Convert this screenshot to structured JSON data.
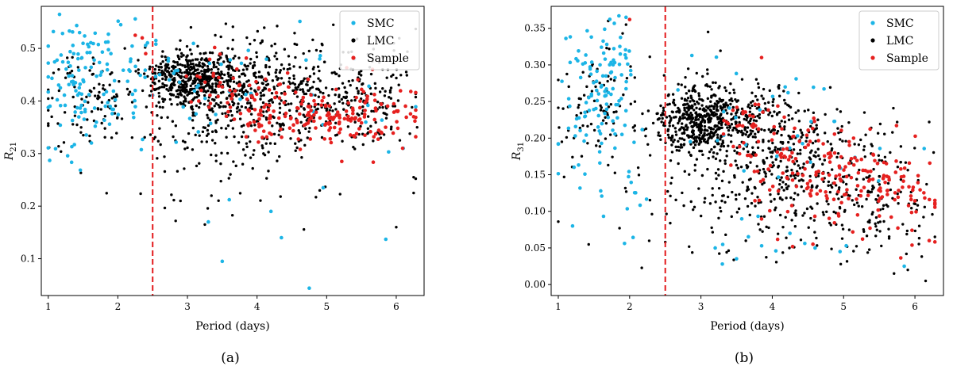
{
  "chart_data": [
    {
      "type": "scatter",
      "panel_label": "(a)",
      "xlabel": "Period (days)",
      "ylabel_main": "R",
      "ylabel_sub": "21",
      "xlim": [
        0.9,
        6.4
      ],
      "ylim": [
        0.03,
        0.58
      ],
      "xticks": [
        1,
        2,
        3,
        4,
        5,
        6
      ],
      "yticks": [
        0.1,
        0.2,
        0.3,
        0.4,
        0.5
      ],
      "vline": 2.5,
      "legend_position": "top-right",
      "series": [
        {
          "name": "SMC",
          "color": "#1cb5e6",
          "count": 180,
          "seed": 11,
          "centers": [
            [
              1.02,
              0.287
            ],
            [
              1.5,
              0.44
            ],
            [
              1.9,
              0.49
            ],
            [
              2.25,
              0.556
            ],
            [
              1.45,
              0.53
            ],
            [
              2.6,
              0.45
            ],
            [
              3.2,
              0.42
            ],
            [
              3.3,
              0.17
            ],
            [
              3.5,
              0.095
            ],
            [
              4.75,
              0.044
            ],
            [
              4.35,
              0.14
            ],
            [
              4.2,
              0.19
            ],
            [
              4.95,
              0.235
            ],
            [
              5.85,
              0.137
            ],
            [
              6.1,
              0.31
            ],
            [
              5.4,
              0.48
            ],
            [
              4.9,
              0.48
            ]
          ],
          "clusters": [
            [
              1.55,
              0.44,
              0.3,
              0.055,
              0.55
            ],
            [
              2.5,
              0.43,
              0.35,
              0.05,
              0.15
            ],
            [
              3.6,
              0.42,
              0.6,
              0.07,
              0.12
            ],
            [
              4.9,
              0.42,
              0.6,
              0.06,
              0.08
            ],
            [
              1.3,
              0.33,
              0.2,
              0.03,
              0.05
            ],
            [
              2.9,
              0.36,
              0.35,
              0.05,
              0.05
            ]
          ]
        },
        {
          "name": "LMC",
          "color": "#000000",
          "count": 1250,
          "seed": 23,
          "centers": [
            [
              1.05,
              0.37
            ],
            [
              1.15,
              0.46
            ],
            [
              2.1,
              0.5
            ],
            [
              2.9,
              0.21
            ],
            [
              3.05,
              0.54
            ],
            [
              3.4,
              0.525
            ],
            [
              3.25,
              0.165
            ],
            [
              6.25,
              0.225
            ],
            [
              6.0,
              0.16
            ],
            [
              6.3,
              0.35
            ],
            [
              6.25,
              0.255
            ]
          ],
          "clusters": [
            [
              1.6,
              0.41,
              0.35,
              0.045,
              0.08
            ],
            [
              3.1,
              0.44,
              0.35,
              0.025,
              0.35
            ],
            [
              3.7,
              0.42,
              0.5,
              0.045,
              0.22
            ],
            [
              4.6,
              0.42,
              0.55,
              0.045,
              0.15
            ],
            [
              5.6,
              0.4,
              0.4,
              0.05,
              0.1
            ],
            [
              3.8,
              0.31,
              0.9,
              0.06,
              0.1
            ]
          ]
        },
        {
          "name": "Sample",
          "color": "#e6201f",
          "count": 240,
          "seed": 37,
          "centers": [
            [
              2.25,
              0.525
            ],
            [
              2.35,
              0.52
            ],
            [
              2.4,
              0.49
            ],
            [
              6.25,
              0.37
            ]
          ],
          "clusters": [
            [
              4.2,
              0.38,
              0.3,
              0.03,
              0.3
            ],
            [
              5.0,
              0.37,
              0.35,
              0.03,
              0.3
            ],
            [
              5.7,
              0.37,
              0.35,
              0.03,
              0.25
            ],
            [
              3.6,
              0.42,
              0.25,
              0.035,
              0.15
            ]
          ]
        }
      ]
    },
    {
      "type": "scatter",
      "panel_label": "(b)",
      "xlabel": "Period (days)",
      "ylabel_main": "R",
      "ylabel_sub": "31",
      "xlim": [
        0.9,
        6.4
      ],
      "ylim": [
        -0.015,
        0.38
      ],
      "xticks": [
        1,
        2,
        3,
        4,
        5,
        6
      ],
      "yticks": [
        0.0,
        0.05,
        0.1,
        0.15,
        0.2,
        0.25,
        0.3,
        0.35
      ],
      "ytick_labels": [
        "0.00",
        "0.05",
        "0.10",
        "0.15",
        "0.20",
        "0.25",
        "0.30",
        "0.35"
      ],
      "vline": 2.5,
      "legend_position": "top-right",
      "series": [
        {
          "name": "SMC",
          "color": "#1cb5e6",
          "count": 180,
          "seed": 53,
          "centers": [
            [
              1.85,
              0.367
            ],
            [
              1.95,
              0.365
            ],
            [
              1.2,
              0.08
            ],
            [
              3.2,
              0.05
            ],
            [
              3.3,
              0.028
            ],
            [
              4.05,
              0.046
            ],
            [
              4.95,
              0.045
            ],
            [
              5.85,
              0.025
            ],
            [
              4.6,
              0.05
            ]
          ],
          "clusters": [
            [
              1.6,
              0.28,
              0.25,
              0.045,
              0.55
            ],
            [
              1.4,
              0.18,
              0.25,
              0.04,
              0.15
            ],
            [
              3.3,
              0.25,
              0.5,
              0.04,
              0.1
            ],
            [
              4.5,
              0.2,
              0.5,
              0.04,
              0.1
            ],
            [
              2.2,
              0.12,
              0.3,
              0.03,
              0.05
            ],
            [
              4.3,
              0.06,
              0.6,
              0.015,
              0.05
            ]
          ]
        },
        {
          "name": "LMC",
          "color": "#000000",
          "count": 1250,
          "seed": 61,
          "centers": [
            [
              1.05,
              0.195
            ],
            [
              1.7,
              0.36
            ],
            [
              1.95,
              0.355
            ],
            [
              2.5,
              0.058
            ],
            [
              5.9,
              0.02
            ],
            [
              6.15,
              0.005
            ],
            [
              6.2,
              0.222
            ],
            [
              3.1,
              0.345
            ]
          ],
          "clusters": [
            [
              1.5,
              0.24,
              0.35,
              0.04,
              0.08
            ],
            [
              3.0,
              0.225,
              0.3,
              0.025,
              0.35
            ],
            [
              3.6,
              0.21,
              0.45,
              0.035,
              0.2
            ],
            [
              4.5,
              0.17,
              0.5,
              0.04,
              0.15
            ],
            [
              5.5,
              0.12,
              0.45,
              0.04,
              0.1
            ],
            [
              3.8,
              0.1,
              0.9,
              0.04,
              0.12
            ]
          ]
        },
        {
          "name": "Sample",
          "color": "#e6201f",
          "count": 240,
          "seed": 79,
          "centers": [
            [
              2.0,
              0.362
            ],
            [
              3.85,
              0.31
            ],
            [
              6.2,
              0.06
            ]
          ],
          "clusters": [
            [
              4.3,
              0.16,
              0.35,
              0.035,
              0.3
            ],
            [
              5.1,
              0.14,
              0.35,
              0.035,
              0.3
            ],
            [
              5.8,
              0.12,
              0.3,
              0.035,
              0.25
            ],
            [
              3.6,
              0.22,
              0.25,
              0.03,
              0.15
            ]
          ]
        }
      ]
    }
  ]
}
